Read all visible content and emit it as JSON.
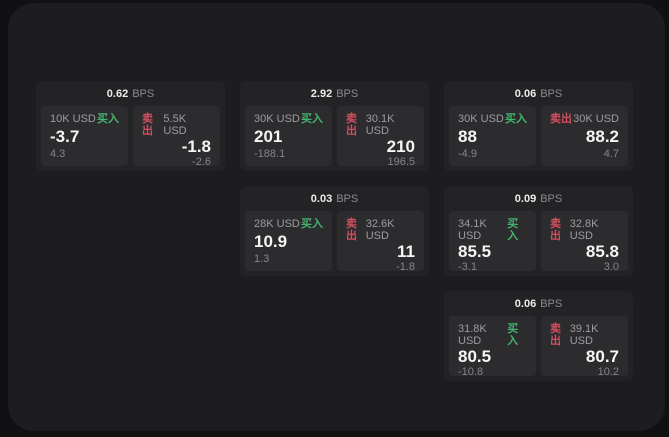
{
  "labels": {
    "bps_suffix": "BPS",
    "buy": "买入",
    "sell": "卖出"
  },
  "colors": {
    "page_background": "#111113",
    "panel_background": "#1d1d1f",
    "card_background": "#232325",
    "tile_background": "#2c2c2e",
    "buy_green": "#45b36e",
    "sell_red": "#d14f5f",
    "text_primary": "#f5f5f5",
    "text_secondary": "#9d9da0",
    "text_muted": "#85858a"
  },
  "cards": [
    {
      "col": 1,
      "row": 1,
      "bps": "0.62",
      "buy": {
        "amount": "10K USD",
        "price": "-3.7",
        "delta": "4.3"
      },
      "sell": {
        "amount": "5.5K USD",
        "price": "-1.8",
        "delta": "-2.6"
      }
    },
    {
      "col": 2,
      "row": 1,
      "bps": "2.92",
      "buy": {
        "amount": "30K USD",
        "price": "201",
        "delta": "-188.1"
      },
      "sell": {
        "amount": "30.1K USD",
        "price": "210",
        "delta": "196.5"
      }
    },
    {
      "col": 3,
      "row": 1,
      "bps": "0.06",
      "buy": {
        "amount": "30K USD",
        "price": "88",
        "delta": "-4.9"
      },
      "sell": {
        "amount": "30K USD",
        "price": "88.2",
        "delta": "4.7"
      }
    },
    {
      "col": 2,
      "row": 2,
      "bps": "0.03",
      "buy": {
        "amount": "28K USD",
        "price": "10.9",
        "delta": "1.3"
      },
      "sell": {
        "amount": "32.6K USD",
        "price": "11",
        "delta": "-1.8"
      }
    },
    {
      "col": 3,
      "row": 2,
      "bps": "0.09",
      "buy": {
        "amount": "34.1K USD",
        "price": "85.5",
        "delta": "-3.1"
      },
      "sell": {
        "amount": "32.8K USD",
        "price": "85.8",
        "delta": "3.0"
      }
    },
    {
      "col": 3,
      "row": 3,
      "bps": "0.06",
      "buy": {
        "amount": "31.8K USD",
        "price": "80.5",
        "delta": "-10.8"
      },
      "sell": {
        "amount": "39.1K USD",
        "price": "80.7",
        "delta": "10.2"
      }
    }
  ]
}
